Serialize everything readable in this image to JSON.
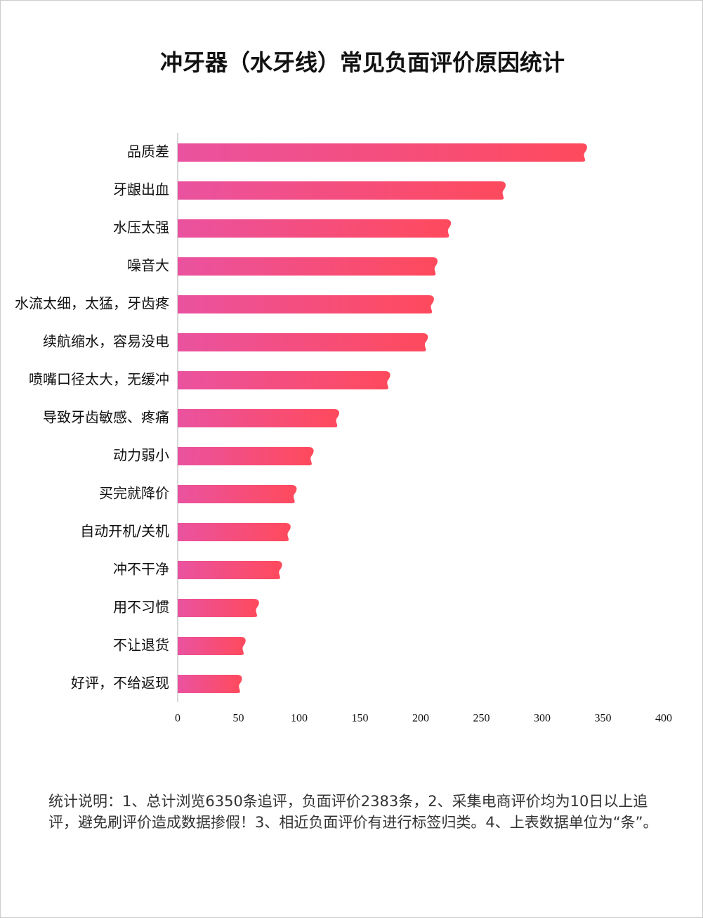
{
  "chart_data": {
    "type": "bar",
    "orientation": "horizontal",
    "title": "冲牙器（水牙线）常见负面评价原因统计",
    "categories": [
      "品质差",
      "牙龈出血",
      "水压太强",
      "噪音大",
      "水流太细，太猛，牙齿疼",
      "续航缩水，容易没电",
      "喷嘴口径太大，无缓冲",
      "导致牙齿敏感、疼痛",
      "动力弱小",
      "买完就降价",
      "自动开机/关机",
      "冲不干净",
      "用不习惯",
      "不让退货",
      "好评，不给返现"
    ],
    "values": [
      335,
      268,
      223,
      212,
      209,
      204,
      173,
      131,
      110,
      96,
      91,
      84,
      65,
      54,
      51
    ],
    "color_start": "#ea52a0",
    "color_end": "#ff4a5c",
    "xlim": [
      0,
      400
    ],
    "xticks": [
      0,
      50,
      100,
      150,
      200,
      250,
      300,
      350,
      400
    ],
    "note": "统计说明：1、总计浏览6350条追评，负面评价2383条，2、采集电商评价均为10日以上追评，避免刷评价造成数据掺假！3、相近负面评价有进行标签归类。4、上表数据单位为“条”。"
  }
}
